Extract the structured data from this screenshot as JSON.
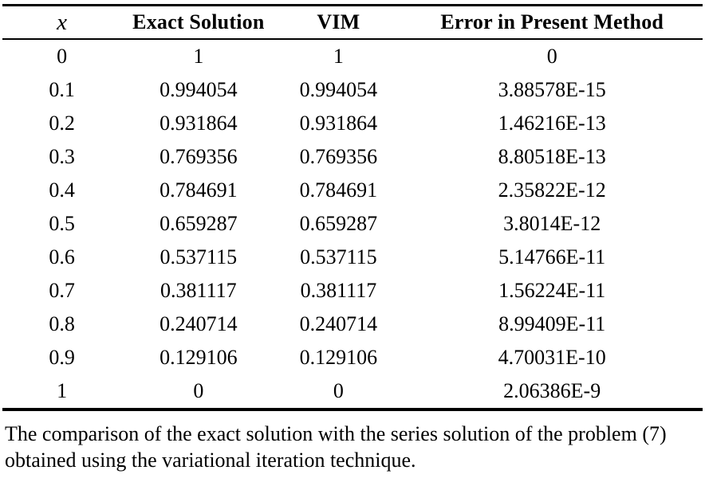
{
  "table": {
    "columns": [
      "x",
      "Exact Solution",
      "VIM",
      "Error in Present Method"
    ],
    "rows": [
      [
        "0",
        "1",
        "1",
        "0"
      ],
      [
        "0.1",
        "0.994054",
        "0.994054",
        "3.88578E-15"
      ],
      [
        "0.2",
        "0.931864",
        "0.931864",
        "1.46216E-13"
      ],
      [
        "0.3",
        "0.769356",
        "0.769356",
        "8.80518E-13"
      ],
      [
        "0.4",
        "0.784691",
        "0.784691",
        "2.35822E-12"
      ],
      [
        "0.5",
        "0.659287",
        "0.659287",
        "3.8014E-12"
      ],
      [
        "0.6",
        "0.537115",
        "0.537115",
        "5.14766E-11"
      ],
      [
        "0.7",
        "0.381117",
        "0.381117",
        "1.56224E-11"
      ],
      [
        "0.8",
        "0.240714",
        "0.240714",
        "8.99409E-11"
      ],
      [
        "0.9",
        "0.129106",
        "0.129106",
        "4.70031E-10"
      ],
      [
        "1",
        "0",
        "0",
        "2.06386E-9"
      ]
    ]
  },
  "caption": "The comparison of the exact solution with the series solution of the problem (7) obtained using the variational iteration technique.",
  "colors": {
    "text": "#000000",
    "background": "#ffffff",
    "rule": "#000000"
  }
}
